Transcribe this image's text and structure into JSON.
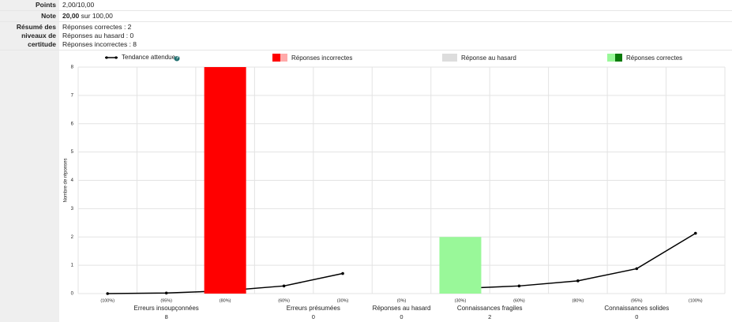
{
  "summary": {
    "rows": [
      {
        "label": "Points",
        "lines": [
          "2,00/10,00"
        ]
      },
      {
        "label": "Note",
        "bold": "20,00",
        "lines": [
          "sur 100,00"
        ]
      },
      {
        "label": "Résumé des niveaux de certitude",
        "lines": [
          "Réponses correctes : 2",
          "Réponses au hasard : 0",
          "Réponses incorrectes : 8"
        ]
      }
    ]
  },
  "chart_data": {
    "type": "bar",
    "y_label": "Nombre de réponses",
    "categories": [
      "(100%)",
      "(95%)",
      "(80%)",
      "(60%)",
      "(30%)",
      "(0%)",
      "(30%)",
      "(60%)",
      "(80%)",
      "(95%)",
      "(100%)"
    ],
    "groups": [
      {
        "label": "Erreurs insoupçonnées",
        "count": "8"
      },
      {
        "label": "Erreurs présumées",
        "count": "0"
      },
      {
        "label": "Réponses au hasard",
        "count": "0"
      },
      {
        "label": "Connaissances fragiles",
        "count": "2"
      },
      {
        "label": "Connaissances solides",
        "count": "0"
      }
    ],
    "series": [
      {
        "name": "Tendance attendue",
        "type": "line",
        "color": "#000000",
        "values": [
          0.0,
          0.02,
          0.1,
          0.27,
          0.71,
          null,
          0.18,
          0.27,
          0.45,
          0.88,
          2.13
        ]
      },
      {
        "name": "Réponses incorrectes",
        "color": "#ff0000",
        "color2": "#ffaaaa",
        "values": [
          null,
          null,
          8,
          null,
          null,
          null,
          null,
          null,
          null,
          null,
          null
        ]
      },
      {
        "name": "Réponse au hasard",
        "color": "#dddddd",
        "values": [
          null,
          null,
          null,
          null,
          null,
          null,
          null,
          null,
          null,
          null,
          null
        ]
      },
      {
        "name": "Réponses correctes",
        "color": "#99f899",
        "color2": "#0a7a0a",
        "values": [
          null,
          null,
          null,
          null,
          null,
          null,
          2,
          null,
          null,
          null,
          null
        ]
      }
    ],
    "ylim": [
      0,
      8
    ],
    "yticks": [
      0,
      1,
      2,
      3,
      4,
      5,
      6,
      7,
      8
    ],
    "grid": true
  }
}
